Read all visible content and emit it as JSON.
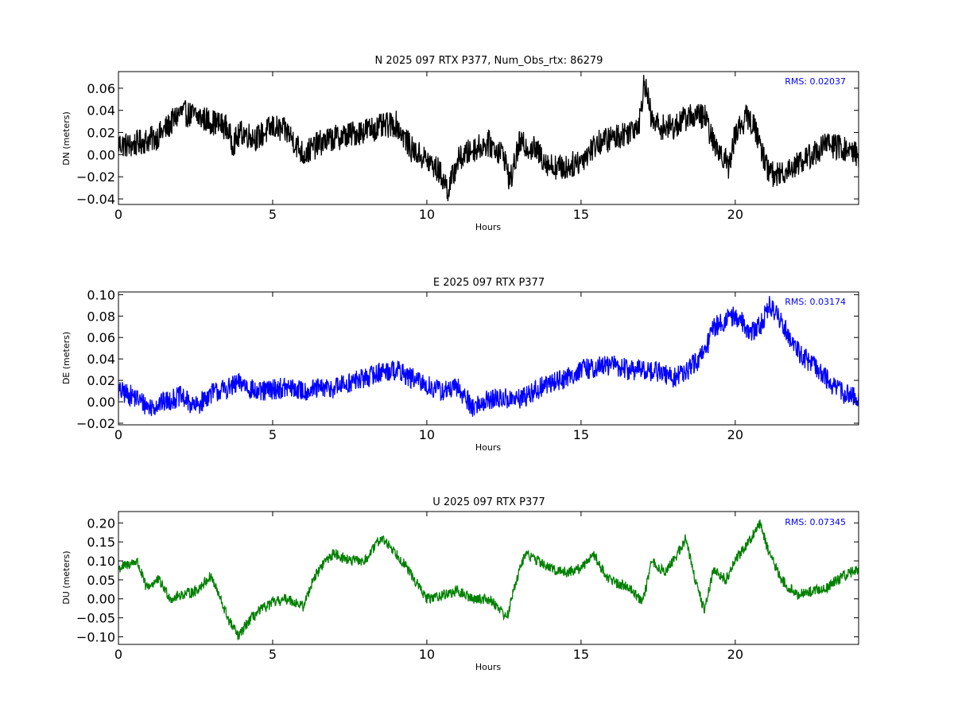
{
  "figure": {
    "background": "#ffffff"
  },
  "chart_data": [
    {
      "type": "line",
      "title": "N 2025 097 RTX  P377, Num_Obs_rtx: 86279",
      "xlabel": "Hours",
      "ylabel": "DN (meters)",
      "xlim": [
        0,
        24
      ],
      "ylim": [
        -0.045,
        0.075
      ],
      "xticks": [
        0,
        5,
        10,
        15,
        20
      ],
      "yticks": [
        -0.04,
        -0.02,
        0.0,
        0.02,
        0.04,
        0.06
      ],
      "ytick_labels": [
        "−0.04",
        "−0.02",
        "0.00",
        "0.02",
        "0.04",
        "0.06"
      ],
      "annotation": "RMS:  0.02037",
      "annotation_color": "#0000ff",
      "color": "#000000",
      "grid": false,
      "noise": 0.012,
      "series": [
        {
          "x": [
            0,
            0.4,
            0.8,
            1.2,
            1.6,
            2.0,
            2.5,
            3.0,
            3.5,
            3.7,
            4.0,
            4.5,
            5.0,
            5.5,
            6.0,
            6.5,
            7.0,
            7.5,
            8.0,
            8.5,
            9.0,
            9.5,
            10.0,
            10.4,
            10.7,
            11.0,
            11.5,
            12.0,
            12.5,
            12.7,
            13.0,
            13.5,
            14.0,
            14.5,
            15.0,
            15.5,
            16.0,
            16.5,
            16.9,
            17.05,
            17.3,
            17.6,
            18.0,
            18.5,
            19.0,
            19.3,
            19.6,
            19.8,
            20.0,
            20.4,
            20.7,
            21.0,
            21.3,
            21.6,
            22.0,
            22.5,
            23.0,
            23.5,
            24.0
          ],
          "y": [
            0.01,
            0.008,
            0.012,
            0.015,
            0.025,
            0.038,
            0.035,
            0.03,
            0.025,
            0.01,
            0.02,
            0.015,
            0.025,
            0.02,
            0.0,
            0.01,
            0.015,
            0.018,
            0.022,
            0.025,
            0.028,
            0.005,
            -0.005,
            -0.015,
            -0.032,
            -0.005,
            0.005,
            0.01,
            0.0,
            -0.025,
            0.01,
            0.005,
            -0.01,
            -0.012,
            -0.005,
            0.01,
            0.015,
            0.02,
            0.03,
            0.068,
            0.03,
            0.025,
            0.025,
            0.035,
            0.035,
            0.01,
            0.0,
            -0.012,
            0.02,
            0.035,
            0.02,
            -0.01,
            -0.02,
            -0.015,
            -0.008,
            0.0,
            0.01,
            0.005,
            0.0
          ]
        }
      ]
    },
    {
      "type": "line",
      "title": "E 2025 097 RTX  P377",
      "xlabel": "Hours",
      "ylabel": "DE (meters)",
      "xlim": [
        0,
        24
      ],
      "ylim": [
        -0.0215,
        0.1025
      ],
      "xticks": [
        0,
        5,
        10,
        15,
        20
      ],
      "yticks": [
        -0.02,
        0.0,
        0.02,
        0.04,
        0.06,
        0.08,
        0.1
      ],
      "ytick_labels": [
        "−0.02",
        "0.00",
        "0.02",
        "0.04",
        "0.06",
        "0.08",
        "0.10"
      ],
      "annotation": "RMS:  0.03174",
      "annotation_color": "#0000ff",
      "color": "#0000ff",
      "grid": false,
      "noise": 0.01,
      "series": [
        {
          "x": [
            0,
            0.5,
            1.0,
            1.5,
            2.0,
            2.5,
            3.0,
            3.5,
            4.0,
            4.5,
            5.0,
            5.5,
            6.0,
            6.5,
            7.0,
            7.5,
            8.0,
            8.5,
            9.0,
            9.5,
            10.0,
            10.5,
            11.0,
            11.5,
            12.0,
            12.5,
            13.0,
            13.5,
            14.0,
            14.5,
            15.0,
            15.5,
            16.0,
            16.5,
            17.0,
            17.5,
            18.0,
            18.5,
            19.0,
            19.3,
            19.6,
            19.9,
            20.2,
            20.5,
            20.8,
            21.1,
            21.4,
            21.7,
            22.0,
            22.5,
            23.0,
            23.5,
            24.0
          ],
          "y": [
            0.01,
            0.005,
            -0.005,
            0.0,
            0.005,
            -0.005,
            0.008,
            0.012,
            0.018,
            0.008,
            0.012,
            0.013,
            0.01,
            0.012,
            0.013,
            0.018,
            0.022,
            0.028,
            0.03,
            0.022,
            0.015,
            0.01,
            0.013,
            -0.005,
            0.002,
            0.003,
            0.002,
            0.01,
            0.018,
            0.022,
            0.03,
            0.032,
            0.035,
            0.03,
            0.03,
            0.028,
            0.022,
            0.03,
            0.045,
            0.07,
            0.075,
            0.08,
            0.075,
            0.065,
            0.07,
            0.09,
            0.08,
            0.065,
            0.048,
            0.035,
            0.02,
            0.008,
            0.005
          ]
        }
      ]
    },
    {
      "type": "line",
      "title": "U 2025 097 RTX  P377",
      "xlabel": "Hours",
      "ylabel": "DU (meters)",
      "xlim": [
        0,
        24
      ],
      "ylim": [
        -0.12,
        0.23
      ],
      "xticks": [
        0,
        5,
        10,
        15,
        20
      ],
      "yticks": [
        -0.1,
        -0.05,
        0.0,
        0.05,
        0.1,
        0.15,
        0.2
      ],
      "ytick_labels": [
        "−0.10",
        "−0.05",
        "0.00",
        "0.05",
        "0.10",
        "0.15",
        "0.20"
      ],
      "annotation": "RMS:  0.07345",
      "annotation_color": "#0000ff",
      "color": "#008000",
      "grid": false,
      "noise": 0.014,
      "series": [
        {
          "x": [
            0,
            0.3,
            0.6,
            0.9,
            1.3,
            1.7,
            2.0,
            2.5,
            3.0,
            3.3,
            3.6,
            3.9,
            4.2,
            4.6,
            5.0,
            5.5,
            6.0,
            6.3,
            6.7,
            7.0,
            7.5,
            8.0,
            8.5,
            8.8,
            9.2,
            9.6,
            10.0,
            10.5,
            11.0,
            11.5,
            12.0,
            12.3,
            12.6,
            12.9,
            13.2,
            13.6,
            14.0,
            14.5,
            15.0,
            15.4,
            15.8,
            16.2,
            16.6,
            17.0,
            17.3,
            17.7,
            18.0,
            18.4,
            18.7,
            19.0,
            19.3,
            19.7,
            20.0,
            20.5,
            20.8,
            21.1,
            21.5,
            22.0,
            22.5,
            23.0,
            23.5,
            24.0
          ],
          "y": [
            0.08,
            0.09,
            0.1,
            0.03,
            0.05,
            0.0,
            0.01,
            0.02,
            0.06,
            0.0,
            -0.06,
            -0.1,
            -0.06,
            -0.03,
            -0.01,
            0.0,
            -0.02,
            0.05,
            0.1,
            0.12,
            0.1,
            0.1,
            0.16,
            0.14,
            0.1,
            0.05,
            0.0,
            0.01,
            0.02,
            0.0,
            0.0,
            -0.02,
            -0.05,
            0.05,
            0.12,
            0.1,
            0.08,
            0.07,
            0.08,
            0.12,
            0.06,
            0.04,
            0.03,
            -0.01,
            0.1,
            0.07,
            0.1,
            0.16,
            0.05,
            -0.03,
            0.08,
            0.05,
            0.1,
            0.16,
            0.2,
            0.12,
            0.05,
            0.01,
            0.02,
            0.03,
            0.06,
            0.08
          ]
        }
      ]
    }
  ]
}
